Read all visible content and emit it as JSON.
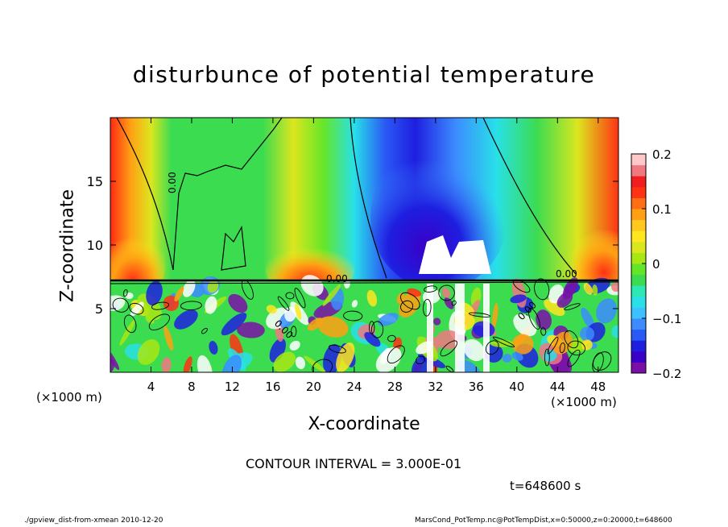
{
  "chart_data": {
    "type": "heatmap",
    "title": "disturbunce of potential temperature",
    "xlabel": "X-coordinate",
    "ylabel": "Z-coordinate",
    "x_unit_label": "(×1000 m)",
    "x_unit_label_right": "(×1000 m)",
    "xlim": [
      0,
      50
    ],
    "ylim": [
      0,
      20
    ],
    "x_ticks": [
      "4",
      "8",
      "12",
      "16",
      "20",
      "24",
      "28",
      "32",
      "36",
      "40",
      "44",
      "48"
    ],
    "y_ticks": [
      "5",
      "10",
      "15"
    ],
    "colorbar": {
      "range": [
        -0.2,
        0.2
      ],
      "tick_labels": [
        "0.2",
        "0.1",
        "0",
        "−0.1",
        "−0.2"
      ],
      "colors": [
        "#7a0fa8",
        "#3a00c8",
        "#1e1ee0",
        "#2a5af5",
        "#3c8cff",
        "#3cc0ff",
        "#28e0e8",
        "#2ce8b4",
        "#3cdc50",
        "#64e628",
        "#a8e614",
        "#dce61e",
        "#ffe61e",
        "#ffc81e",
        "#ffa014",
        "#ff6e14",
        "#ff3214",
        "#f01e1e",
        "#f07880",
        "#ffc8c8"
      ]
    },
    "contour_labels": [
      "0.00",
      "0.00",
      "0.00",
      "0.00",
      "0.00"
    ],
    "contour_interval": "CONTOUR INTERVAL = 3.000E-01",
    "time": "t=648600 s"
  },
  "footer": {
    "left": "./gpview_dist-from-xmean  2010-12-20",
    "right": "MarsCond_PotTemp.nc@PotTempDist,x=0:50000,z=0:20000,t=648600"
  }
}
